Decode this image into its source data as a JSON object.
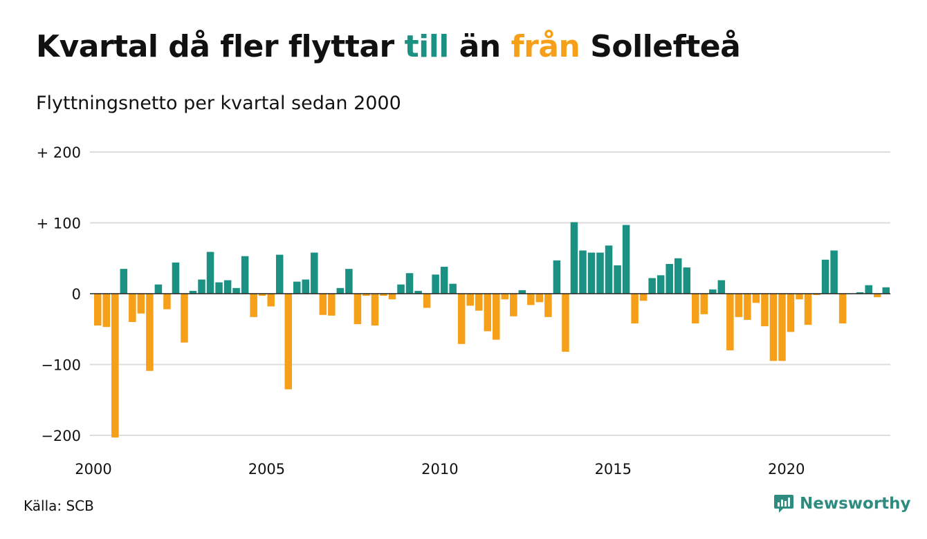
{
  "title": {
    "part1": "Kvartal då fler flyttar ",
    "till": "till",
    "part2": " än ",
    "fran": "från",
    "part3": " Sollefteå"
  },
  "subtitle": "Flyttningsnetto per kvartal sedan 2000",
  "source": "Källa: SCB",
  "logo": {
    "text": "Newsworthy",
    "icon": "newsworthy-chart-bubble-icon"
  },
  "colors": {
    "positive": "#1a9183",
    "negative": "#f6a01a",
    "grid": "#dddddd",
    "zero": "#222222",
    "logo": "#2e8b7f"
  },
  "chart_data": {
    "type": "bar",
    "start_year": 2000,
    "quarters_per_year": 4,
    "xlabel": "",
    "ylabel": "",
    "ylim": [
      -210,
      210
    ],
    "yticks": [
      {
        "value": 200,
        "label": "+ 200"
      },
      {
        "value": 100,
        "label": "+ 100"
      },
      {
        "value": 0,
        "label": "0"
      },
      {
        "value": -100,
        "label": "−100"
      },
      {
        "value": -200,
        "label": "−200"
      }
    ],
    "xticks": [
      "2000",
      "2005",
      "2010",
      "2015",
      "2020"
    ],
    "grid": true,
    "values": [
      -45,
      -47,
      -203,
      35,
      -40,
      -28,
      -109,
      13,
      -22,
      44,
      -69,
      4,
      20,
      59,
      16,
      19,
      8,
      53,
      -33,
      -3,
      -18,
      55,
      -135,
      17,
      20,
      58,
      -30,
      -31,
      8,
      35,
      -43,
      -3,
      -45,
      -3,
      -8,
      13,
      29,
      4,
      -20,
      27,
      38,
      14,
      -71,
      -17,
      -24,
      -53,
      -65,
      -8,
      -32,
      5,
      -16,
      -12,
      -33,
      47,
      -82,
      101,
      61,
      58,
      58,
      68,
      40,
      97,
      -42,
      -10,
      22,
      26,
      42,
      50,
      37,
      -42,
      -29,
      6,
      19,
      -80,
      -33,
      -37,
      -13,
      -46,
      -95,
      -95,
      -54,
      -8,
      -44,
      -2,
      48,
      61,
      -42,
      0,
      2,
      12,
      -5,
      9
    ]
  }
}
